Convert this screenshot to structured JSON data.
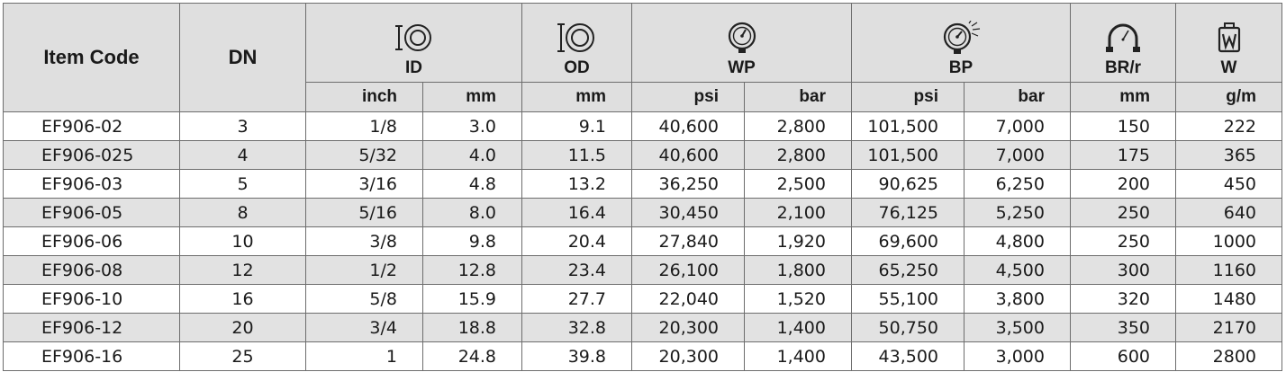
{
  "header": {
    "item_code": "Item Code",
    "dn": "DN",
    "id": {
      "label": "ID",
      "icon": "hose-inner-diameter-icon"
    },
    "od": {
      "label": "OD",
      "icon": "hose-outer-diameter-icon"
    },
    "wp": {
      "label": "WP",
      "icon": "pressure-gauge-icon"
    },
    "bp": {
      "label": "BP",
      "icon": "burst-pressure-gauge-icon"
    },
    "brr": {
      "label": "BR/r",
      "icon": "bend-radius-icon"
    },
    "w": {
      "label": "W",
      "icon": "weight-icon"
    },
    "units": {
      "id_inch": "inch",
      "id_mm": "mm",
      "od_mm": "mm",
      "wp_psi": "psi",
      "wp_bar": "bar",
      "bp_psi": "psi",
      "bp_bar": "bar",
      "br_mm": "mm",
      "w_gm": "g/m"
    }
  },
  "rows": [
    {
      "code": "EF906-02",
      "dn": "3",
      "id_inch": "1/8",
      "id_mm": "3.0",
      "od_mm": "9.1",
      "wp_psi": "40,600",
      "wp_bar": "2,800",
      "bp_psi": "101,500",
      "bp_bar": "7,000",
      "br": "150",
      "w": "222"
    },
    {
      "code": "EF906-025",
      "dn": "4",
      "id_inch": "5/32",
      "id_mm": "4.0",
      "od_mm": "11.5",
      "wp_psi": "40,600",
      "wp_bar": "2,800",
      "bp_psi": "101,500",
      "bp_bar": "7,000",
      "br": "175",
      "w": "365"
    },
    {
      "code": "EF906-03",
      "dn": "5",
      "id_inch": "3/16",
      "id_mm": "4.8",
      "od_mm": "13.2",
      "wp_psi": "36,250",
      "wp_bar": "2,500",
      "bp_psi": "90,625",
      "bp_bar": "6,250",
      "br": "200",
      "w": "450"
    },
    {
      "code": "EF906-05",
      "dn": "8",
      "id_inch": "5/16",
      "id_mm": "8.0",
      "od_mm": "16.4",
      "wp_psi": "30,450",
      "wp_bar": "2,100",
      "bp_psi": "76,125",
      "bp_bar": "5,250",
      "br": "250",
      "w": "640"
    },
    {
      "code": "EF906-06",
      "dn": "10",
      "id_inch": "3/8",
      "id_mm": "9.8",
      "od_mm": "20.4",
      "wp_psi": "27,840",
      "wp_bar": "1,920",
      "bp_psi": "69,600",
      "bp_bar": "4,800",
      "br": "250",
      "w": "1000"
    },
    {
      "code": "EF906-08",
      "dn": "12",
      "id_inch": "1/2",
      "id_mm": "12.8",
      "od_mm": "23.4",
      "wp_psi": "26,100",
      "wp_bar": "1,800",
      "bp_psi": "65,250",
      "bp_bar": "4,500",
      "br": "300",
      "w": "1160"
    },
    {
      "code": "EF906-10",
      "dn": "16",
      "id_inch": "5/8",
      "id_mm": "15.9",
      "od_mm": "27.7",
      "wp_psi": "22,040",
      "wp_bar": "1,520",
      "bp_psi": "55,100",
      "bp_bar": "3,800",
      "br": "320",
      "w": "1480"
    },
    {
      "code": "EF906-12",
      "dn": "20",
      "id_inch": "3/4",
      "id_mm": "18.8",
      "od_mm": "32.8",
      "wp_psi": "20,300",
      "wp_bar": "1,400",
      "bp_psi": "50,750",
      "bp_bar": "3,500",
      "br": "350",
      "w": "2170"
    },
    {
      "code": "EF906-16",
      "dn": "25",
      "id_inch": "1",
      "id_mm": "24.8",
      "od_mm": "39.8",
      "wp_psi": "20,300",
      "wp_bar": "1,400",
      "bp_psi": "43,500",
      "bp_bar": "3,000",
      "br": "600",
      "w": "2800"
    }
  ],
  "colors": {
    "header_bg": "#dfdfdf",
    "stripe_bg": "#e2e2e2",
    "border": "#6d6d6d"
  }
}
